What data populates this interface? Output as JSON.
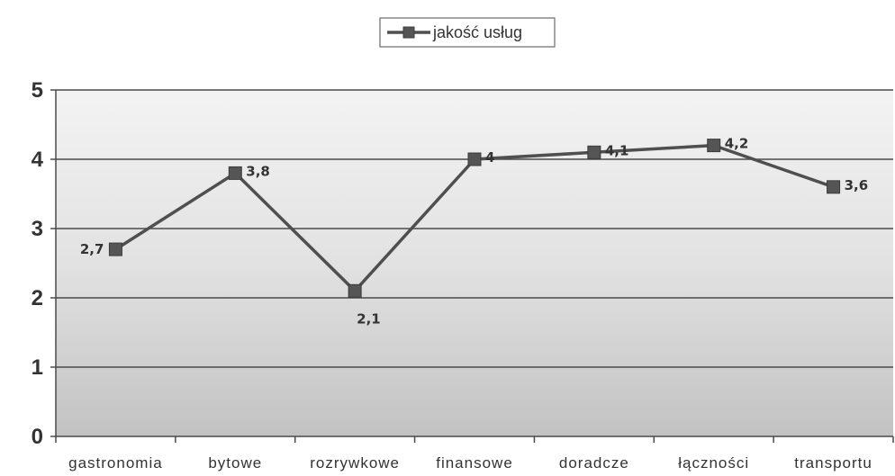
{
  "chart_data": {
    "type": "line",
    "categories": [
      "gastronomia",
      "bytowe",
      "rozrywkowe",
      "finansowe",
      "doradcze",
      "łączności",
      "transportu"
    ],
    "series": [
      {
        "name": "jakość usług",
        "values": [
          2.7,
          3.8,
          2.1,
          4,
          4.1,
          4.2,
          3.6
        ],
        "labels": [
          "2,7",
          "3,8",
          "2,1",
          "4",
          "4,1",
          "4,2",
          "3,6"
        ]
      }
    ],
    "y_ticks": [
      "0",
      "1",
      "2",
      "3",
      "4",
      "5"
    ],
    "ylim": [
      0,
      5
    ],
    "grid": true,
    "legend": "top-center",
    "colors": {
      "line": "#4f4f4f",
      "marker": "#555555",
      "plot_bg_top": "#f3f3f3",
      "plot_bg_bottom": "#c2c2c2"
    }
  }
}
